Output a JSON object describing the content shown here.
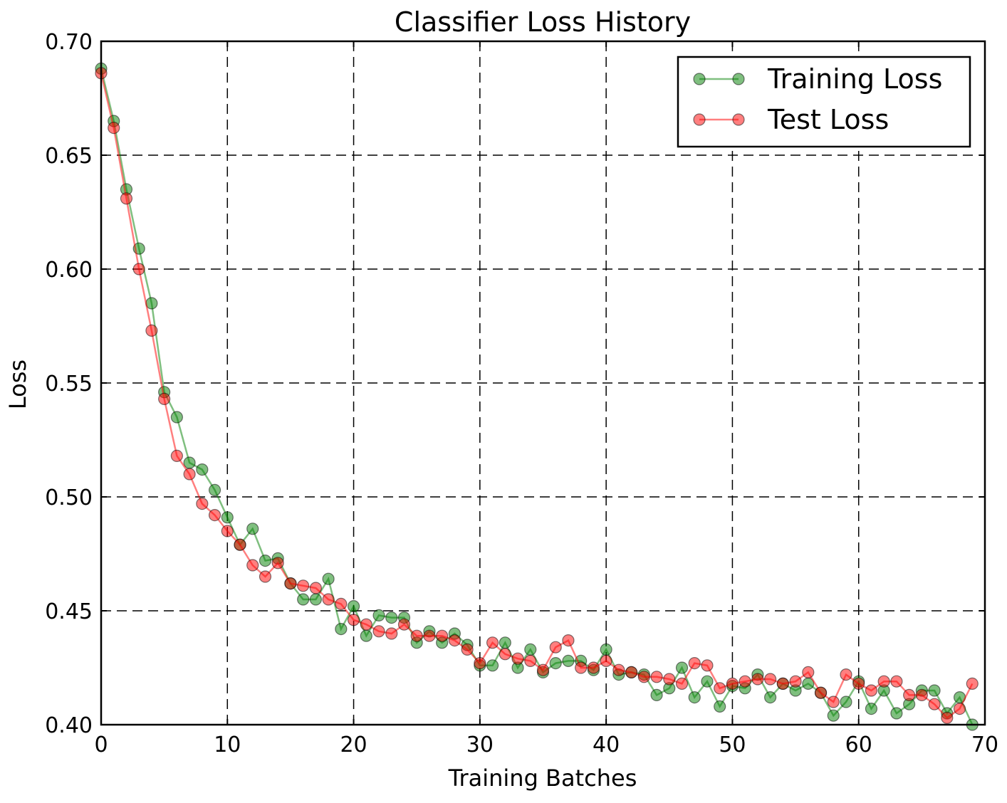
{
  "chart_data": {
    "type": "line",
    "title": "Classifier Loss History",
    "xlabel": "Training Batches",
    "ylabel": "Loss",
    "xlim": [
      0,
      70
    ],
    "ylim": [
      0.4,
      0.7
    ],
    "xticks": [
      0,
      10,
      20,
      30,
      40,
      50,
      60,
      70
    ],
    "yticks": [
      0.4,
      0.45,
      0.5,
      0.55,
      0.6,
      0.65,
      0.7
    ],
    "xtick_labels": [
      "0",
      "10",
      "20",
      "30",
      "40",
      "50",
      "60",
      "70"
    ],
    "ytick_labels": [
      "0.40",
      "0.45",
      "0.50",
      "0.55",
      "0.60",
      "0.65",
      "0.70"
    ],
    "grid": true,
    "legend_position": "top-right",
    "series": [
      {
        "name": "Training Loss",
        "color": "#008000",
        "x": [
          0,
          1,
          2,
          3,
          4,
          5,
          6,
          7,
          8,
          9,
          10,
          11,
          12,
          13,
          14,
          15,
          16,
          17,
          18,
          19,
          20,
          21,
          22,
          23,
          24,
          25,
          26,
          27,
          28,
          29,
          30,
          31,
          32,
          33,
          34,
          35,
          36,
          37,
          38,
          39,
          40,
          41,
          42,
          43,
          44,
          45,
          46,
          47,
          48,
          49,
          50,
          51,
          52,
          53,
          54,
          55,
          56,
          57,
          58,
          59,
          60,
          61,
          62,
          63,
          64,
          65,
          66,
          67,
          68,
          69
        ],
        "values": [
          0.688,
          0.665,
          0.635,
          0.609,
          0.585,
          0.546,
          0.535,
          0.515,
          0.512,
          0.503,
          0.491,
          0.479,
          0.486,
          0.472,
          0.473,
          0.462,
          0.455,
          0.455,
          0.464,
          0.442,
          0.452,
          0.439,
          0.448,
          0.447,
          0.447,
          0.436,
          0.441,
          0.436,
          0.44,
          0.435,
          0.426,
          0.426,
          0.436,
          0.425,
          0.433,
          0.423,
          0.427,
          0.428,
          0.428,
          0.424,
          0.433,
          0.422,
          0.423,
          0.422,
          0.413,
          0.416,
          0.425,
          0.412,
          0.419,
          0.408,
          0.417,
          0.416,
          0.422,
          0.412,
          0.418,
          0.415,
          0.418,
          0.414,
          0.404,
          0.41,
          0.419,
          0.407,
          0.415,
          0.405,
          0.409,
          0.415,
          0.415,
          0.405,
          0.412,
          0.4
        ]
      },
      {
        "name": "Test Loss",
        "color": "#ff0000",
        "x": [
          0,
          1,
          2,
          3,
          4,
          5,
          6,
          7,
          8,
          9,
          10,
          11,
          12,
          13,
          14,
          15,
          16,
          17,
          18,
          19,
          20,
          21,
          22,
          23,
          24,
          25,
          26,
          27,
          28,
          29,
          30,
          31,
          32,
          33,
          34,
          35,
          36,
          37,
          38,
          39,
          40,
          41,
          42,
          43,
          44,
          45,
          46,
          47,
          48,
          49,
          50,
          51,
          52,
          53,
          54,
          55,
          56,
          57,
          58,
          59,
          60,
          61,
          62,
          63,
          64,
          65,
          66,
          67,
          68,
          69
        ],
        "values": [
          0.686,
          0.662,
          0.631,
          0.6,
          0.573,
          0.543,
          0.518,
          0.51,
          0.497,
          0.492,
          0.485,
          0.479,
          0.47,
          0.465,
          0.471,
          0.462,
          0.461,
          0.46,
          0.455,
          0.453,
          0.446,
          0.444,
          0.441,
          0.44,
          0.444,
          0.439,
          0.439,
          0.439,
          0.437,
          0.433,
          0.427,
          0.436,
          0.431,
          0.429,
          0.428,
          0.424,
          0.434,
          0.437,
          0.425,
          0.425,
          0.428,
          0.424,
          0.423,
          0.421,
          0.421,
          0.42,
          0.418,
          0.427,
          0.426,
          0.416,
          0.418,
          0.419,
          0.42,
          0.42,
          0.418,
          0.419,
          0.423,
          0.414,
          0.41,
          0.422,
          0.418,
          0.415,
          0.419,
          0.419,
          0.413,
          0.413,
          0.409,
          0.403,
          0.407,
          0.418
        ]
      }
    ]
  }
}
